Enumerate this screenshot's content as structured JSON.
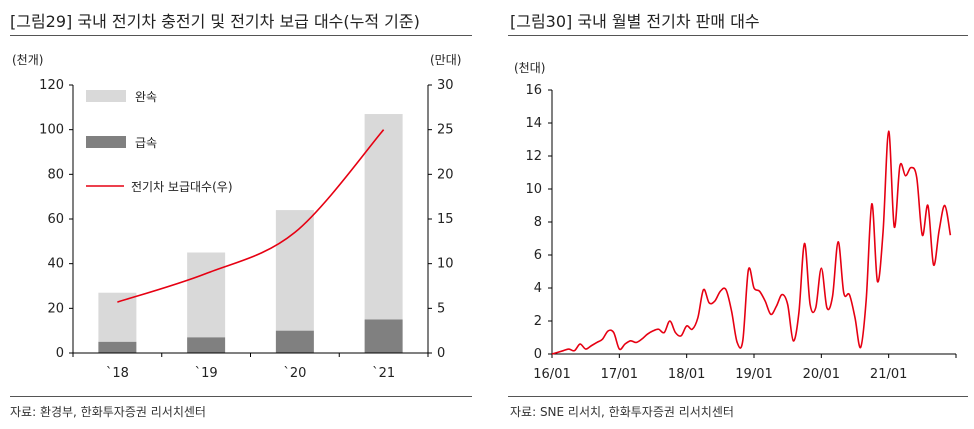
{
  "charts": {
    "left": {
      "figure_title": "[그림29]  국내 전기차 충전기 및 전기차 보급 대수(누적 기준)",
      "source": "자료: 환경부, 한화투자증권 리서치센터"
    },
    "right": {
      "figure_title": "[그림30]  국내 월별 전기차 판매 대수",
      "source": "자료: SNE 리서치, 한화투자증권 리서치센터"
    }
  },
  "colors": {
    "slow_bar": "#d9d9d9",
    "fast_bar": "#808080",
    "line": "#e60012",
    "axis": "#000000"
  },
  "chart_data": [
    {
      "type": "bar",
      "stacked": true,
      "categories": [
        "`18",
        "`19",
        "`20",
        "`21"
      ],
      "series": [
        {
          "name": "급속",
          "axis": "left",
          "values": [
            5,
            7,
            10,
            15
          ]
        },
        {
          "name": "완속",
          "axis": "left",
          "values": [
            22,
            38,
            54,
            92
          ]
        },
        {
          "name": "전기차  보급대수(우)",
          "type": "line",
          "axis": "right",
          "values": [
            5.7,
            8.9,
            13.5,
            25
          ]
        }
      ],
      "ylabel_left": "(천개)",
      "ylabel_right": "(만대)",
      "ylim_left": [
        0,
        120
      ],
      "ylim_right": [
        0,
        30
      ],
      "yticks_left": [
        0,
        20,
        40,
        60,
        80,
        100,
        120
      ],
      "yticks_right": [
        0,
        5,
        10,
        15,
        20,
        25,
        30
      ],
      "legend_position": "top-left",
      "grid": false
    },
    {
      "type": "line",
      "series": [
        {
          "name": "",
          "x": [
            "2016-01",
            "2016-02",
            "2016-03",
            "2016-04",
            "2016-05",
            "2016-06",
            "2016-07",
            "2016-08",
            "2016-09",
            "2016-10",
            "2016-11",
            "2016-12",
            "2017-01",
            "2017-02",
            "2017-03",
            "2017-04",
            "2017-05",
            "2017-06",
            "2017-07",
            "2017-08",
            "2017-09",
            "2017-10",
            "2017-11",
            "2017-12",
            "2018-01",
            "2018-02",
            "2018-03",
            "2018-04",
            "2018-05",
            "2018-06",
            "2018-07",
            "2018-08",
            "2018-09",
            "2018-10",
            "2018-11",
            "2018-12",
            "2019-01",
            "2019-02",
            "2019-03",
            "2019-04",
            "2019-05",
            "2019-06",
            "2019-07",
            "2019-08",
            "2019-09",
            "2019-10",
            "2019-11",
            "2019-12",
            "2020-01",
            "2020-02",
            "2020-03",
            "2020-04",
            "2020-05",
            "2020-06",
            "2020-07",
            "2020-08",
            "2020-09",
            "2020-10",
            "2020-11",
            "2020-12",
            "2021-01",
            "2021-02",
            "2021-03",
            "2021-04",
            "2021-05",
            "2021-06",
            "2021-07",
            "2021-08",
            "2021-09",
            "2021-10",
            "2021-11",
            "2021-12"
          ],
          "values": [
            0.0,
            0.1,
            0.2,
            0.3,
            0.2,
            0.6,
            0.3,
            0.5,
            0.7,
            0.9,
            1.4,
            1.3,
            0.3,
            0.6,
            0.8,
            0.7,
            0.9,
            1.2,
            1.4,
            1.5,
            1.3,
            2.0,
            1.3,
            1.1,
            1.7,
            1.5,
            2.2,
            3.9,
            3.1,
            3.2,
            3.8,
            3.9,
            2.6,
            0.7,
            0.8,
            5.1,
            4.0,
            3.8,
            3.2,
            2.4,
            2.9,
            3.6,
            3.0,
            0.8,
            2.5,
            6.7,
            3.0,
            2.8,
            5.2,
            2.8,
            3.5,
            6.8,
            3.7,
            3.6,
            2.2,
            0.4,
            3.3,
            9.1,
            4.4,
            7.4,
            13.5,
            7.7,
            11.4,
            10.8,
            11.3,
            10.7,
            7.2,
            9.0,
            5.4,
            7.5,
            9.0,
            7.2
          ]
        }
      ],
      "ylabel": "(천대)",
      "xticks": [
        "16/01",
        "17/01",
        "18/01",
        "19/01",
        "20/01",
        "21/01"
      ],
      "ylim": [
        0,
        16
      ],
      "yticks": [
        0,
        2,
        4,
        6,
        8,
        10,
        12,
        14,
        16
      ],
      "grid": false
    }
  ]
}
